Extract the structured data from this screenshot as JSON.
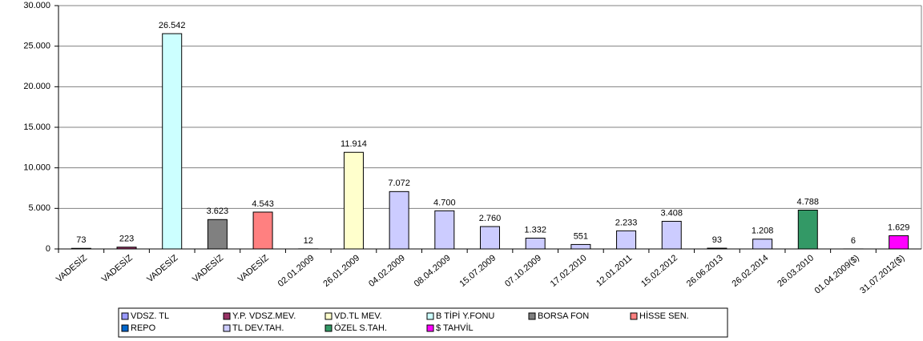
{
  "chart_data": {
    "type": "bar",
    "categories": [
      "VADESİZ",
      "VADESİZ",
      "VADESİZ",
      "VADESİZ",
      "VADESİZ",
      "02.01.2009",
      "26.01.2009",
      "04.02.2009",
      "08.04.2009",
      "15.07.2009",
      "07.10.2009",
      "17.02.2010",
      "12.01.2011",
      "15.02.2012",
      "26.06.2013",
      "26.02.2014",
      "26.03.2010",
      "01.04.2009($)",
      "31.07.2012($)"
    ],
    "series": [
      {
        "name": "VDSZ. TL",
        "color": "#9999ff",
        "values": [
          73,
          null,
          null,
          null,
          null,
          null,
          null,
          null,
          null,
          null,
          null,
          null,
          null,
          null,
          null,
          null,
          null,
          null,
          null
        ],
        "value_labels": [
          "73",
          null,
          null,
          null,
          null,
          null,
          null,
          null,
          null,
          null,
          null,
          null,
          null,
          null,
          null,
          null,
          null,
          null,
          null
        ]
      },
      {
        "name": "Y.P. VDSZ.MEV.",
        "color": "#993366",
        "values": [
          null,
          223,
          null,
          null,
          null,
          null,
          null,
          null,
          null,
          null,
          null,
          null,
          null,
          null,
          null,
          null,
          null,
          null,
          null
        ],
        "value_labels": [
          null,
          "223",
          null,
          null,
          null,
          null,
          null,
          null,
          null,
          null,
          null,
          null,
          null,
          null,
          null,
          null,
          null,
          null,
          null
        ]
      },
      {
        "name": "VD.TL MEV.",
        "color": "#ffffcc",
        "values": [
          null,
          null,
          null,
          null,
          null,
          null,
          11914,
          null,
          null,
          null,
          null,
          null,
          null,
          null,
          null,
          null,
          null,
          null,
          null
        ],
        "value_labels": [
          null,
          null,
          null,
          null,
          null,
          null,
          "11.914",
          null,
          null,
          null,
          null,
          null,
          null,
          null,
          null,
          null,
          null,
          null,
          null
        ]
      },
      {
        "name": "B TİPİ Y.FONU",
        "color": "#ccffff",
        "values": [
          null,
          null,
          26542,
          null,
          null,
          null,
          null,
          null,
          null,
          null,
          null,
          null,
          null,
          null,
          null,
          null,
          null,
          null,
          null
        ],
        "value_labels": [
          null,
          null,
          "26.542",
          null,
          null,
          null,
          null,
          null,
          null,
          null,
          null,
          null,
          null,
          null,
          null,
          null,
          null,
          null,
          null
        ]
      },
      {
        "name": "BORSA FON",
        "color": "#808080",
        "values": [
          null,
          null,
          null,
          3623,
          null,
          null,
          null,
          null,
          null,
          null,
          null,
          null,
          null,
          null,
          null,
          null,
          null,
          null,
          null
        ],
        "value_labels": [
          null,
          null,
          null,
          "3.623",
          null,
          null,
          null,
          null,
          null,
          null,
          null,
          null,
          null,
          null,
          null,
          null,
          null,
          null,
          null
        ]
      },
      {
        "name": "HİSSE SEN.",
        "color": "#ff8080",
        "values": [
          null,
          null,
          null,
          null,
          4543,
          null,
          null,
          null,
          null,
          null,
          null,
          null,
          null,
          null,
          null,
          null,
          null,
          null,
          null
        ],
        "value_labels": [
          null,
          null,
          null,
          null,
          "4.543",
          null,
          null,
          null,
          null,
          null,
          null,
          null,
          null,
          null,
          null,
          null,
          null,
          null,
          null
        ]
      },
      {
        "name": "REPO",
        "color": "#0066cc",
        "values": [
          null,
          null,
          null,
          null,
          null,
          12,
          null,
          null,
          null,
          null,
          null,
          null,
          null,
          null,
          null,
          null,
          null,
          null,
          null
        ],
        "value_labels": [
          null,
          null,
          null,
          null,
          null,
          "12",
          null,
          null,
          null,
          null,
          null,
          null,
          null,
          null,
          null,
          null,
          null,
          null,
          null
        ]
      },
      {
        "name": "TL DEV.TAH.",
        "color": "#ccccff",
        "values": [
          null,
          null,
          null,
          null,
          null,
          null,
          null,
          7072,
          4700,
          2760,
          1332,
          551,
          2233,
          3408,
          93,
          1208,
          null,
          null,
          null
        ],
        "value_labels": [
          null,
          null,
          null,
          null,
          null,
          null,
          null,
          "7.072",
          "4.700",
          "2.760",
          "1.332",
          "551",
          "2.233",
          "3.408",
          "93",
          "1.208",
          null,
          null,
          null
        ]
      },
      {
        "name": "ÖZEL S.TAH.",
        "color": "#339966",
        "values": [
          null,
          null,
          null,
          null,
          null,
          null,
          null,
          null,
          null,
          null,
          null,
          null,
          null,
          null,
          null,
          null,
          4788,
          null,
          null
        ],
        "value_labels": [
          null,
          null,
          null,
          null,
          null,
          null,
          null,
          null,
          null,
          null,
          null,
          null,
          null,
          null,
          null,
          null,
          "4.788",
          null,
          null
        ]
      },
      {
        "name": "$ TAHVİL",
        "color": "#ff00ff",
        "values": [
          null,
          null,
          null,
          null,
          null,
          null,
          null,
          null,
          null,
          null,
          null,
          null,
          null,
          null,
          null,
          null,
          null,
          6,
          1629
        ],
        "value_labels": [
          null,
          null,
          null,
          null,
          null,
          null,
          null,
          null,
          null,
          null,
          null,
          null,
          null,
          null,
          null,
          null,
          null,
          "6",
          "1.629"
        ]
      }
    ],
    "ylim": [
      0,
      30000
    ],
    "yticks": [
      0,
      {
        "value": 5000,
        "label": "5.000"
      },
      {
        "value": 10000,
        "label": "10.000"
      },
      {
        "value": 15000,
        "label": "15.000"
      },
      {
        "value": 20000,
        "label": "20.000"
      },
      {
        "value": 25000,
        "label": "25.000"
      },
      {
        "value": 30000,
        "label": "30.000"
      }
    ],
    "grid": true,
    "legend": "bottom"
  }
}
